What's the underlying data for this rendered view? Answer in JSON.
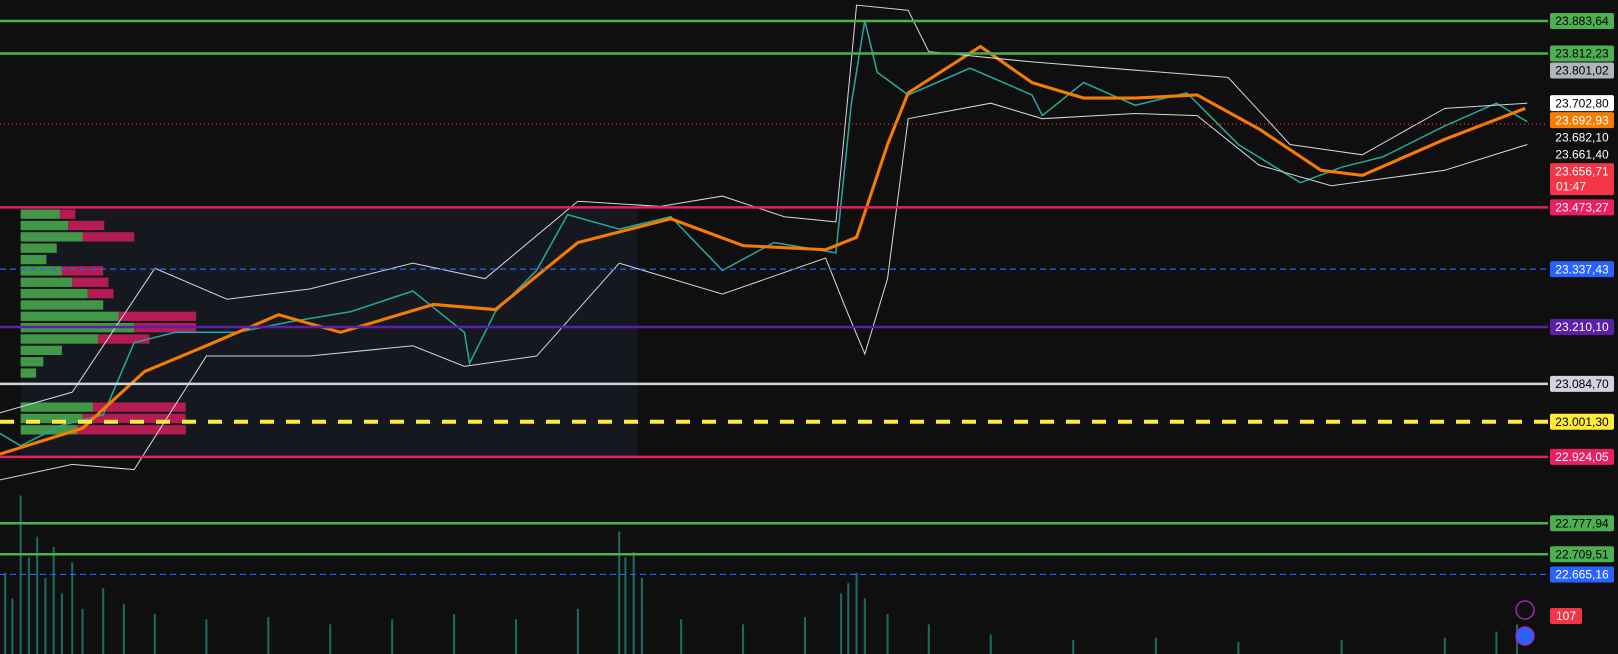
{
  "chart_data": {
    "type": "price-levels",
    "ylim": [
      22490,
      23930
    ],
    "levels": [
      {
        "value": 23883.64,
        "label": "23.883,64",
        "color": "#4caf50",
        "text_color": "#000000",
        "line": "solid"
      },
      {
        "value": 23812.23,
        "label": "23.812,23",
        "color": "#4caf50",
        "text_color": "#000000",
        "line": "solid"
      },
      {
        "value": 23801.02,
        "label": "23.801,02",
        "color": "#b2b5be",
        "text_color": "#000000"
      },
      {
        "value": 23702.8,
        "label": "23.702,80",
        "color": "#ffffff",
        "text_color": "#000000"
      },
      {
        "value": 23692.93,
        "label": "23.692,93",
        "color": "#f57c00",
        "text_color": "#ffffff"
      },
      {
        "value": 23682.1,
        "label": "23.682,10",
        "color": "#0f0f0f",
        "text_color": "#ffffff"
      },
      {
        "value": 23661.4,
        "label": "23.661,40",
        "color": "#0f0f0f",
        "text_color": "#ffffff"
      },
      {
        "value": 23656.71,
        "label": "23.656,71",
        "color": "#f23645",
        "text_color": "#ffffff",
        "line": "dotted",
        "countdown": "01:47"
      },
      {
        "value": 23473.27,
        "label": "23.473,27",
        "color": "#e91e63",
        "text_color": "#ffffff",
        "line": "solid"
      },
      {
        "value": 23337.43,
        "label": "23.337,43",
        "color": "#2962ff",
        "text_color": "#ffffff",
        "line": "dashed"
      },
      {
        "value": 23210.1,
        "label": "23.210,10",
        "color": "#5b1fa8",
        "text_color": "#ffffff",
        "line": "solid"
      },
      {
        "value": 23084.7,
        "label": "23.084,70",
        "color": "#d1d4dc",
        "text_color": "#000000",
        "line": "solid"
      },
      {
        "value": 23001.3,
        "label": "23.001,30",
        "color": "#ffeb3b",
        "text_color": "#000000",
        "line": "bold-dashed"
      },
      {
        "value": 22924.05,
        "label": "22.924,05",
        "color": "#e91e63",
        "text_color": "#ffffff",
        "line": "solid"
      },
      {
        "value": 22777.94,
        "label": "22.777,94",
        "color": "#4caf50",
        "text_color": "#000000",
        "line": "solid"
      },
      {
        "value": 22709.51,
        "label": "22.709,51",
        "color": "#4caf50",
        "text_color": "#000000",
        "line": "solid"
      },
      {
        "value": 22665.16,
        "label": "22.665,16",
        "color": "#2962ff",
        "text_color": "#ffffff",
        "line": "dashed"
      }
    ],
    "badge": "107"
  }
}
